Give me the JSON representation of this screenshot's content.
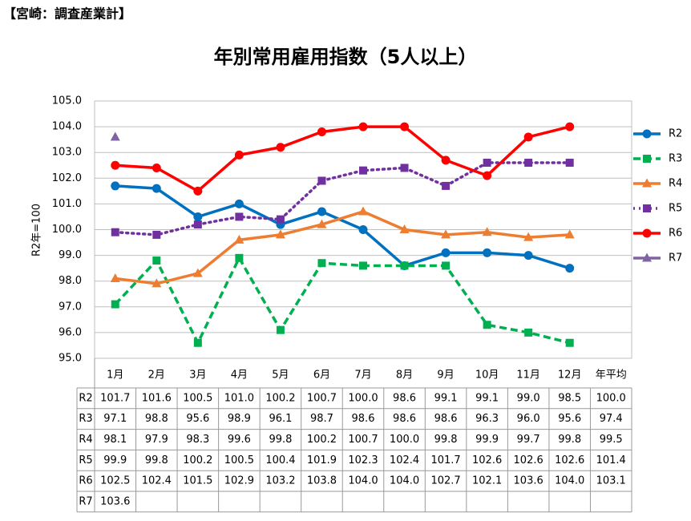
{
  "header": "【宮崎：調査産業計】",
  "chart_data": {
    "type": "line",
    "title": "年別常用雇用指数（5人以上）",
    "y_label": "R2年=100",
    "categories": [
      "1月",
      "2月",
      "3月",
      "4月",
      "5月",
      "6月",
      "7月",
      "8月",
      "9月",
      "10月",
      "11月",
      "12月",
      "年平均"
    ],
    "ylim": [
      95,
      105
    ],
    "yticks": [
      {
        "value": 95,
        "label": "95.0"
      },
      {
        "value": 96,
        "label": "96.0"
      },
      {
        "value": 97,
        "label": "97.0"
      },
      {
        "value": 98,
        "label": "98.0"
      },
      {
        "value": 99,
        "label": "99.0"
      },
      {
        "value": 100,
        "label": "100.0"
      },
      {
        "value": 101,
        "label": "101.0"
      },
      {
        "value": 102,
        "label": "102.0"
      },
      {
        "value": 103,
        "label": "103.0"
      },
      {
        "value": 104,
        "label": "104.0"
      },
      {
        "value": 105,
        "label": "105.0"
      }
    ],
    "grid": true,
    "legend": "right",
    "series": [
      {
        "name": "R2",
        "color": "#0070C0",
        "marker": "circle",
        "dash": "solid",
        "values": [
          101.7,
          101.6,
          100.5,
          101.0,
          100.2,
          100.7,
          100.0,
          98.6,
          99.1,
          99.1,
          99.0,
          98.5,
          100.0
        ],
        "value_labels": [
          "101.7",
          "101.6",
          "100.5",
          "101.0",
          "100.2",
          "100.7",
          "100.0",
          "98.6",
          "99.1",
          "99.1",
          "99.0",
          "98.5",
          "100.0"
        ]
      },
      {
        "name": "R3",
        "color": "#00B050",
        "marker": "square",
        "dash": "dashed",
        "values": [
          97.1,
          98.8,
          95.6,
          98.9,
          96.1,
          98.7,
          98.6,
          98.6,
          98.6,
          96.3,
          96.0,
          95.6,
          97.4
        ],
        "value_labels": [
          "97.1",
          "98.8",
          "95.6",
          "98.9",
          "96.1",
          "98.7",
          "98.6",
          "98.6",
          "98.6",
          "96.3",
          "96.0",
          "95.6",
          "97.4"
        ]
      },
      {
        "name": "R4",
        "color": "#ED7D31",
        "marker": "triangle",
        "dash": "solid",
        "values": [
          98.1,
          97.9,
          98.3,
          99.6,
          99.8,
          100.2,
          100.7,
          100.0,
          99.8,
          99.9,
          99.7,
          99.8,
          99.5
        ],
        "value_labels": [
          "98.1",
          "97.9",
          "98.3",
          "99.6",
          "99.8",
          "100.2",
          "100.7",
          "100.0",
          "99.8",
          "99.9",
          "99.7",
          "99.8",
          "99.5"
        ]
      },
      {
        "name": "R5",
        "color": "#7030A0",
        "marker": "square",
        "dash": "dotted",
        "values": [
          99.9,
          99.8,
          100.2,
          100.5,
          100.4,
          101.9,
          102.3,
          102.4,
          101.7,
          102.6,
          102.6,
          102.6,
          101.4
        ],
        "value_labels": [
          "99.9",
          "99.8",
          "100.2",
          "100.5",
          "100.4",
          "101.9",
          "102.3",
          "102.4",
          "101.7",
          "102.6",
          "102.6",
          "102.6",
          "101.4"
        ]
      },
      {
        "name": "R6",
        "color": "#FF0000",
        "marker": "circle",
        "dash": "solid",
        "values": [
          102.5,
          102.4,
          101.5,
          102.9,
          103.2,
          103.8,
          104.0,
          104.0,
          102.7,
          102.1,
          103.6,
          104.0,
          103.1
        ],
        "value_labels": [
          "102.5",
          "102.4",
          "101.5",
          "102.9",
          "103.2",
          "103.8",
          "104.0",
          "104.0",
          "102.7",
          "102.1",
          "103.6",
          "104.0",
          "103.1"
        ]
      },
      {
        "name": "R7",
        "color": "#8064A2",
        "marker": "triangle",
        "dash": "solid",
        "values": [
          103.6,
          null,
          null,
          null,
          null,
          null,
          null,
          null,
          null,
          null,
          null,
          null,
          null
        ],
        "value_labels": [
          "103.6",
          null,
          null,
          null,
          null,
          null,
          null,
          null,
          null,
          null,
          null,
          null,
          null
        ]
      }
    ]
  }
}
